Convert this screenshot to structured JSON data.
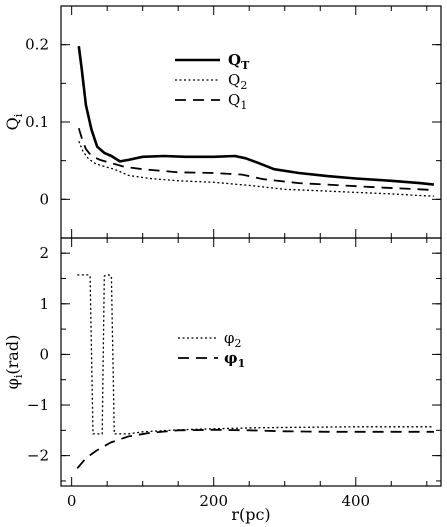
{
  "chart_data": [
    {
      "type": "line",
      "panel": "top",
      "xlabel": "",
      "ylabel": "Q_i",
      "xlim": [
        -15,
        520
      ],
      "ylim": [
        -0.05,
        0.25
      ],
      "xticks": [
        0,
        200,
        400
      ],
      "yticks": [
        0,
        0.1,
        0.2
      ],
      "ytick_labels": [
        "0",
        "0.1",
        "0.2"
      ],
      "show_xtick_labels": false,
      "legend_position": "upper-center",
      "series": [
        {
          "name": "Q_T",
          "label_main": "Q",
          "label_sub": "T",
          "dash": "solid",
          "width": 2.6,
          "bold": true,
          "points": [
            [
              10,
              0.198
            ],
            [
              14,
              0.17
            ],
            [
              20,
              0.122
            ],
            [
              28,
              0.09
            ],
            [
              36,
              0.068
            ],
            [
              46,
              0.06
            ],
            [
              56,
              0.056
            ],
            [
              68,
              0.049
            ],
            [
              80,
              0.051
            ],
            [
              100,
              0.055
            ],
            [
              130,
              0.056
            ],
            [
              160,
              0.055
            ],
            [
              200,
              0.055
            ],
            [
              230,
              0.056
            ],
            [
              245,
              0.053
            ],
            [
              260,
              0.048
            ],
            [
              285,
              0.039
            ],
            [
              320,
              0.034
            ],
            [
              360,
              0.03
            ],
            [
              400,
              0.027
            ],
            [
              450,
              0.024
            ],
            [
              490,
              0.021
            ],
            [
              510,
              0.019
            ]
          ]
        },
        {
          "name": "Q_2",
          "label_main": "Q",
          "label_sub": "2",
          "dash": "2,2.5",
          "width": 1.3,
          "bold": false,
          "points": [
            [
              10,
              0.075
            ],
            [
              16,
              0.062
            ],
            [
              24,
              0.052
            ],
            [
              34,
              0.046
            ],
            [
              48,
              0.042
            ],
            [
              60,
              0.039
            ],
            [
              80,
              0.031
            ],
            [
              110,
              0.027
            ],
            [
              150,
              0.024
            ],
            [
              200,
              0.022
            ],
            [
              250,
              0.018
            ],
            [
              300,
              0.013
            ],
            [
              350,
              0.011
            ],
            [
              400,
              0.009
            ],
            [
              450,
              0.007
            ],
            [
              490,
              0.005
            ],
            [
              510,
              0.004
            ]
          ]
        },
        {
          "name": "Q_1",
          "label_main": "Q",
          "label_sub": "1",
          "dash": "11,7",
          "width": 1.8,
          "bold": false,
          "points": [
            [
              10,
              0.092
            ],
            [
              14,
              0.08
            ],
            [
              20,
              0.065
            ],
            [
              28,
              0.056
            ],
            [
              40,
              0.051
            ],
            [
              55,
              0.047
            ],
            [
              75,
              0.042
            ],
            [
              100,
              0.039
            ],
            [
              150,
              0.035
            ],
            [
              200,
              0.034
            ],
            [
              240,
              0.032
            ],
            [
              270,
              0.026
            ],
            [
              320,
              0.021
            ],
            [
              380,
              0.018
            ],
            [
              440,
              0.015
            ],
            [
              490,
              0.013
            ],
            [
              510,
              0.012
            ]
          ]
        }
      ]
    },
    {
      "type": "line",
      "panel": "bottom",
      "xlabel": "r(pc)",
      "ylabel": "φ_i(rad)",
      "ylabel_main": "φ",
      "ylabel_sub": "i",
      "ylabel_tail": "(rad)",
      "xlim": [
        -15,
        520
      ],
      "ylim": [
        -2.6,
        2.3
      ],
      "xticks": [
        0,
        200,
        400
      ],
      "xtick_labels": [
        "0",
        "200",
        "400"
      ],
      "yticks": [
        -2,
        -1,
        0,
        1,
        2
      ],
      "ytick_labels": [
        "−2",
        "−1",
        "0",
        "1",
        "2"
      ],
      "legend_position": "center-right",
      "series": [
        {
          "name": "φ_2",
          "label_main": "φ",
          "label_sub": "2",
          "dash": "2,2.5",
          "width": 1.3,
          "bold": false,
          "points": [
            [
              8,
              1.57
            ],
            [
              24,
              1.57
            ],
            [
              26,
              1.55
            ],
            [
              30,
              -1.57
            ],
            [
              43,
              -1.57
            ],
            [
              46,
              1.55
            ],
            [
              52,
              1.57
            ],
            [
              56,
              1.55
            ],
            [
              60,
              -1.57
            ],
            [
              80,
              -1.57
            ],
            [
              100,
              -1.53
            ],
            [
              150,
              -1.49
            ],
            [
              200,
              -1.47
            ],
            [
              260,
              -1.45
            ],
            [
              320,
              -1.44
            ],
            [
              400,
              -1.43
            ],
            [
              510,
              -1.43
            ]
          ]
        },
        {
          "name": "φ_1",
          "label_main": "φ",
          "label_sub": "1",
          "dash": "11,7",
          "width": 1.8,
          "bold": true,
          "points": [
            [
              8,
              -2.25
            ],
            [
              20,
              -2.05
            ],
            [
              35,
              -1.9
            ],
            [
              55,
              -1.74
            ],
            [
              80,
              -1.62
            ],
            [
              110,
              -1.55
            ],
            [
              150,
              -1.5
            ],
            [
              200,
              -1.49
            ],
            [
              250,
              -1.5
            ],
            [
              300,
              -1.52
            ],
            [
              360,
              -1.53
            ],
            [
              420,
              -1.53
            ],
            [
              510,
              -1.53
            ]
          ]
        }
      ]
    }
  ]
}
